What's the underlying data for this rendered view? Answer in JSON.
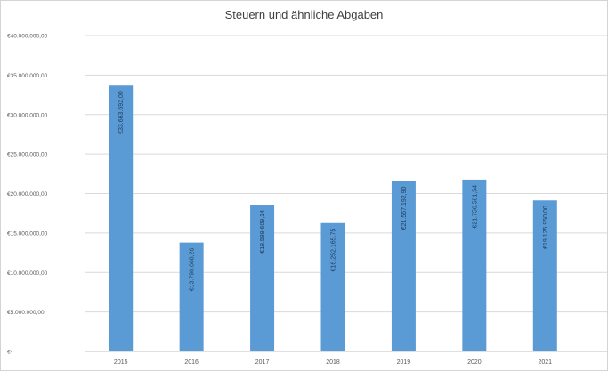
{
  "chart_data": {
    "type": "bar",
    "title": "Steuern und ähnliche Abgaben",
    "categories": [
      "2015",
      "2016",
      "2017",
      "2018",
      "2019",
      "2020",
      "2021"
    ],
    "values": [
      33663692.0,
      13790668.26,
      18589609.14,
      16252165.75,
      21567192.9,
      21756581.54,
      19125950.0
    ],
    "data_labels": [
      "€33.663.692,00",
      "€13.790.668,26",
      "€18.589.609,14",
      "€16.252.165,75",
      "€21.567.192,90",
      "€21.756.581,54",
      "€19.125.950,00"
    ],
    "ylim": [
      0,
      40000000
    ],
    "yticks": [
      0,
      5000000,
      10000000,
      15000000,
      20000000,
      25000000,
      30000000,
      35000000,
      40000000
    ],
    "ytick_labels": [
      "€-",
      "€5.000.000,00",
      "€10.000.000,00",
      "€15.000.000,00",
      "€20.000.000,00",
      "€25.000.000,00",
      "€30.000.000,00",
      "€35.000.000,00",
      "€40.000.000,00"
    ],
    "xlabel": "",
    "ylabel": "",
    "grid": true,
    "legend": "none",
    "colors": {
      "bar": "#5b9bd5",
      "grid": "#d9d9d9",
      "axis": "#bfbfbf",
      "text": "#595959",
      "label": "#1f3c5c"
    }
  }
}
